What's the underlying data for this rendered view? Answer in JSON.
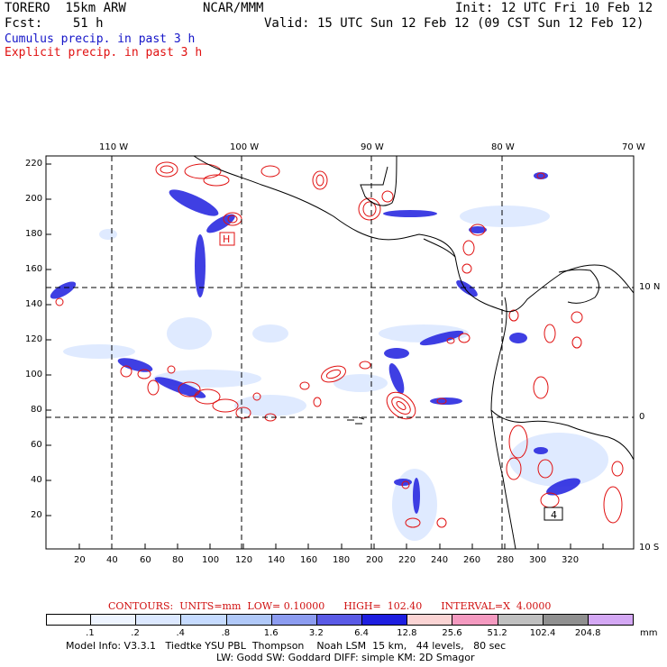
{
  "header": {
    "model": "TORERO  15km ARW",
    "center": "NCAR/MMM",
    "init": "Init: 12 UTC Fri 10 Feb 12",
    "fcst": "Fcst:    51 h",
    "valid": "Valid: 15 UTC Sun 12 Feb 12 (09 CST Sun 12 Feb 12)",
    "cumulus_label": "Cumulus precip. in past 3 h",
    "explicit_label": "Explicit precip. in past 3 h"
  },
  "colors": {
    "cumulus": "#1414c8",
    "explicit": "#e01010",
    "coast": "#000000"
  },
  "map": {
    "top_lon_labels": [
      "110 W",
      "100 W",
      "90 W",
      "80 W",
      "70 W"
    ],
    "right_lat_labels": [
      "10 N",
      "0",
      "10 S"
    ],
    "left_y_ticks": [
      "220",
      "200",
      "180",
      "160",
      "140",
      "120",
      "100",
      "80",
      "60",
      "40",
      "20"
    ],
    "bottom_x_ticks": [
      "20",
      "40",
      "60",
      "80",
      "100",
      "120",
      "140",
      "160",
      "180",
      "200",
      "220",
      "240",
      "260",
      "280",
      "300",
      "320"
    ],
    "marker_labels": [
      "H",
      "4"
    ]
  },
  "contours": {
    "text": "CONTOURS:  UNITS=mm  LOW= 0.10000      HIGH=  102.40      INTERVAL=X  4.0000"
  },
  "colorbar": {
    "levels": [
      ".1",
      ".2",
      ".4",
      ".8",
      "1.6",
      "3.2",
      "6.4",
      "12.8",
      "25.6",
      "51.2",
      "102.4",
      "204.8"
    ],
    "colors": [
      "#ffffff",
      "#eef4ff",
      "#dce8ff",
      "#c6dbff",
      "#b0c8f8",
      "#8c9cf0",
      "#5a5ae6",
      "#1e1ee0",
      "#fbd4d4",
      "#f49ac0",
      "#c0c0c0",
      "#909090",
      "#d4a8f4"
    ],
    "unit": "mm"
  },
  "footer": {
    "line1": "Model Info: V3.3.1   Tiedtke YSU PBL  Thompson    Noah LSM  15 km,   44 levels,   80 sec",
    "line2": "LW: Godd SW: Goddard DIFF: simple KM: 2D Smagor"
  }
}
